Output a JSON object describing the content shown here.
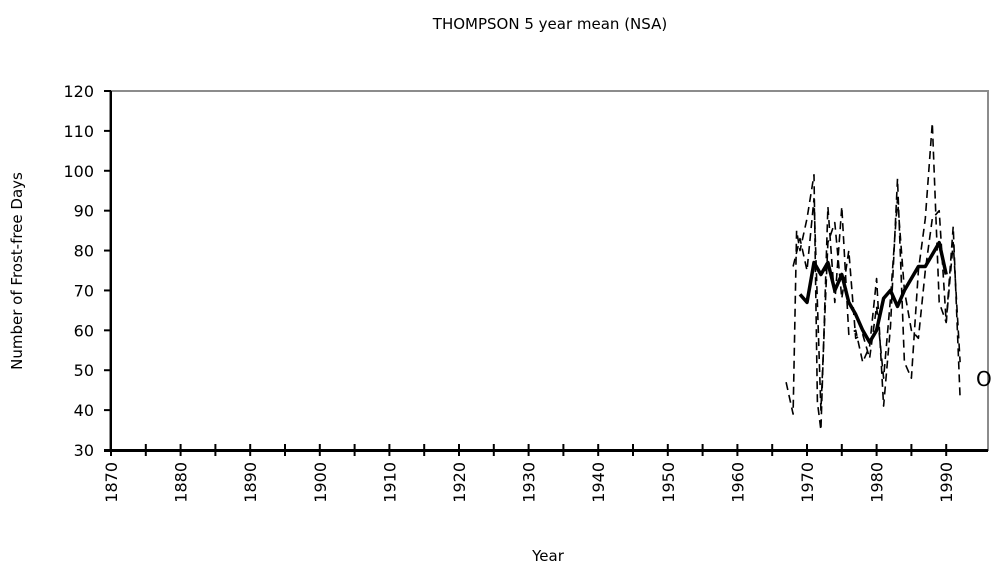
{
  "chart_data": {
    "type": "line",
    "title": "THOMPSON 5 year mean (NSA)",
    "xlabel": "Year",
    "ylabel": "Number of Frost-free Days",
    "xlim": [
      1870,
      1995
    ],
    "ylim": [
      30,
      120
    ],
    "x_ticks": [
      1870,
      1880,
      1890,
      1900,
      1910,
      1920,
      1930,
      1940,
      1950,
      1960,
      1970,
      1980,
      1990
    ],
    "y_ticks": [
      30,
      40,
      50,
      60,
      70,
      80,
      90,
      100,
      110,
      120
    ],
    "grid": false,
    "legend": "none",
    "side_marker": "O",
    "series": [
      {
        "style": "dashed",
        "x": [
          1967,
          1968,
          1968.5,
          1969,
          1970,
          1971,
          1971.5,
          1972,
          1973,
          1974,
          1975,
          1976,
          1977,
          1978,
          1979,
          1980,
          1981,
          1982,
          1983,
          1984,
          1985,
          1986,
          1987,
          1988,
          1989,
          1990,
          1991,
          1992
        ],
        "values": [
          47,
          39,
          85,
          80,
          88,
          99,
          42,
          35,
          91,
          67,
          91,
          59,
          60,
          52,
          56,
          73,
          41,
          61,
          98,
          52,
          48,
          75,
          88,
          112,
          67,
          62,
          86,
          43
        ]
      },
      {
        "style": "dashed",
        "x": [
          1968,
          1969,
          1970,
          1971,
          1972,
          1973,
          1974,
          1975,
          1976,
          1977,
          1978,
          1979,
          1980,
          1981,
          1982,
          1983,
          1984,
          1985,
          1986,
          1987,
          1988,
          1989,
          1990,
          1991,
          1992
        ],
        "values": [
          76,
          83,
          75,
          93,
          40,
          82,
          87,
          68,
          80,
          58,
          59,
          53,
          66,
          48,
          68,
          93,
          70,
          60,
          58,
          75,
          88,
          90,
          62,
          82,
          52
        ]
      },
      {
        "style": "solid",
        "x": [
          1969,
          1970,
          1971,
          1972,
          1973,
          1974,
          1975,
          1976,
          1977,
          1978,
          1979,
          1980,
          1981,
          1982,
          1983,
          1984,
          1985,
          1986,
          1987,
          1988,
          1989,
          1990
        ],
        "values": [
          69,
          67,
          77,
          74,
          77,
          70,
          74,
          67,
          64,
          60,
          57,
          60,
          68,
          70,
          66,
          70,
          73,
          76,
          76,
          79,
          82,
          74
        ]
      }
    ]
  }
}
